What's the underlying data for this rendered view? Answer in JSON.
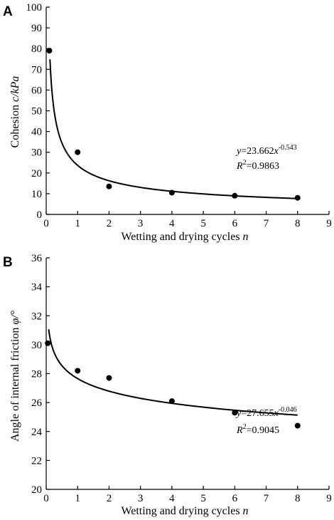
{
  "chart_data": [
    {
      "type": "scatter",
      "panel": "A",
      "xlabel_main": "Wetting and drying cycles ",
      "xlabel_var": "n",
      "ylabel_main": "Cohesion ",
      "ylabel_var": "c/kPa",
      "xlim": [
        0,
        9
      ],
      "ylim": [
        0,
        100
      ],
      "xticks": [
        "0",
        "1",
        "2",
        "3",
        "4",
        "5",
        "6",
        "7",
        "8",
        "9"
      ],
      "yticks": [
        "0",
        "10",
        "20",
        "30",
        "40",
        "50",
        "60",
        "70",
        "80",
        "90",
        "100"
      ],
      "points": [
        {
          "x": 0.1,
          "y": 79
        },
        {
          "x": 1,
          "y": 30
        },
        {
          "x": 2,
          "y": 13.5
        },
        {
          "x": 4,
          "y": 10.5
        },
        {
          "x": 6,
          "y": 9
        },
        {
          "x": 8,
          "y": 8
        }
      ],
      "fit": {
        "a": 23.662,
        "b": -0.543,
        "x_from": 0.12,
        "x_to": 8
      },
      "equation": {
        "y": "y",
        "coef": "=23.662",
        "x": "x",
        "exp": "-0.543",
        "r": "R",
        "r_exp": "2",
        "r_value": "=0.9863"
      }
    },
    {
      "type": "scatter",
      "panel": "B",
      "xlabel_main": "Wetting and drying cycles ",
      "xlabel_var": "n",
      "ylabel_main": "Angle of internal friction ",
      "ylabel_var": "φ/°",
      "xlim": [
        0,
        9
      ],
      "ylim": [
        20,
        36
      ],
      "xticks": [
        "0",
        "1",
        "2",
        "3",
        "4",
        "5",
        "6",
        "7",
        "8",
        "9"
      ],
      "yticks": [
        "20",
        "22",
        "24",
        "26",
        "28",
        "30",
        "32",
        "34",
        "36"
      ],
      "points": [
        {
          "x": 0.05,
          "y": 30.1
        },
        {
          "x": 1,
          "y": 28.2
        },
        {
          "x": 2,
          "y": 27.7
        },
        {
          "x": 4,
          "y": 26.1
        },
        {
          "x": 6,
          "y": 25.3
        },
        {
          "x": 8,
          "y": 24.4
        }
      ],
      "fit": {
        "a": 27.655,
        "b": -0.046,
        "x_from": 0.08,
        "x_to": 8
      },
      "equation": {
        "y": "y",
        "coef": "=27.655",
        "x": "x",
        "exp": "-0.046",
        "r": "R",
        "r_exp": "2",
        "r_value": "=0.9045"
      }
    }
  ]
}
